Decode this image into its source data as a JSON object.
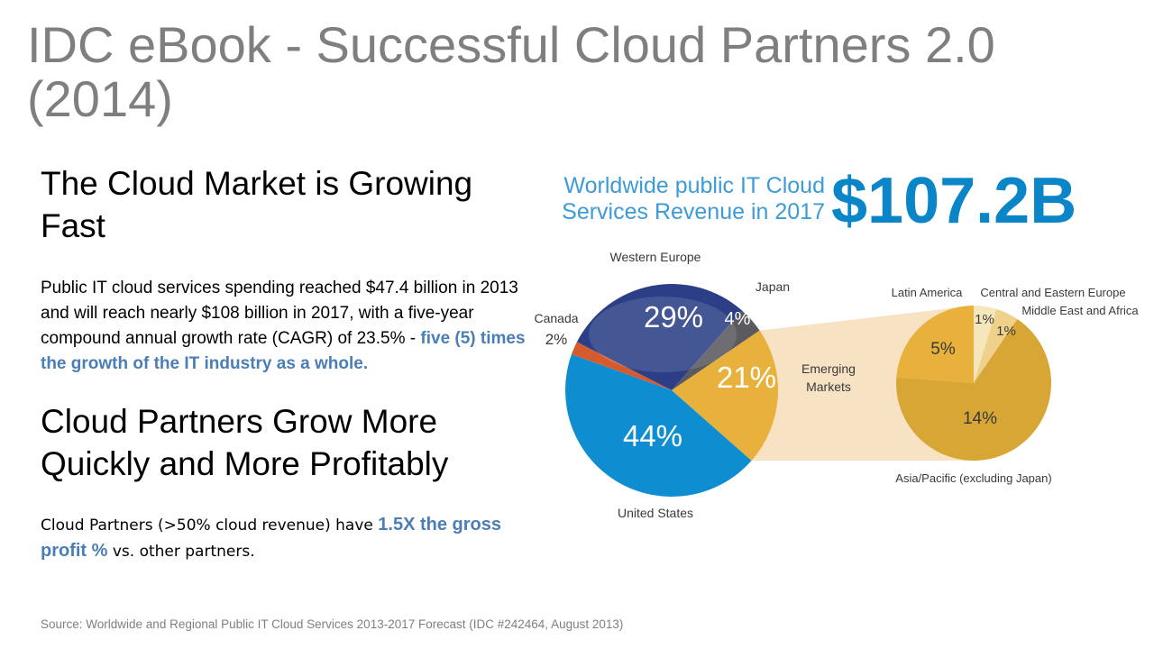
{
  "title": "IDC eBook - Successful Cloud Partners 2.0 (2014)",
  "section1": {
    "heading": "The Cloud Market is Growing Fast",
    "body_plain": "Public IT cloud services spending reached $47.4 billion in 2013 and will reach nearly $108 billion in 2017, with a five-year compound annual growth rate (CAGR) of 23.5% - ",
    "body_highlight": "five (5) times the growth of the IT industry as a whole."
  },
  "section2": {
    "heading": "Cloud Partners Grow More Quickly and More Profitably",
    "body_plain_1": "Cloud Partners (>50% cloud revenue) have ",
    "body_highlight": "1.5X the gross profit %",
    "body_plain_2": " vs. other partners."
  },
  "source": "Source:  Worldwide and Regional Public IT Cloud Services 2013-2017 Forecast (IDC #242464, August 2013)",
  "chart_data": {
    "type": "pie",
    "title": "Worldwide public IT Cloud Services Revenue in 2017",
    "total": "$107.2B",
    "main_pie": {
      "slices": [
        {
          "name": "Western Europe",
          "value": 29,
          "label": "29%",
          "color": "#2c3f86"
        },
        {
          "name": "Japan",
          "value": 4,
          "label": "4%",
          "color": "#5b5b5f"
        },
        {
          "name": "Emerging Markets",
          "value": 21,
          "label": "21%",
          "color": "#e8b13c"
        },
        {
          "name": "United States",
          "value": 44,
          "label": "44%",
          "color": "#0e8ed0"
        },
        {
          "name": "Canada",
          "value": 2,
          "label": "2%",
          "color": "#d35b2e"
        }
      ]
    },
    "emerging_pie": {
      "slices": [
        {
          "name": "Central and Eastern Europe",
          "value": 1,
          "label": "1%",
          "color": "#f6e6bb"
        },
        {
          "name": "Middle East and Africa",
          "value": 1,
          "label": "1%",
          "color": "#efd18b"
        },
        {
          "name": "Asia/Pacific (excluding Japan)",
          "value": 14,
          "label": "14%",
          "color": "#d8a635"
        },
        {
          "name": "Latin America",
          "value": 5,
          "label": "5%",
          "color": "#e8b13c"
        }
      ]
    },
    "labels": {
      "western_europe": "Western Europe",
      "japan": "Japan",
      "canada_name": "Canada",
      "canada_pct": "2%",
      "emerging_1": "Emerging",
      "emerging_2": "Markets",
      "united_states": "United States",
      "latin_america": "Latin America",
      "cee": "Central and Eastern Europe",
      "mea": "Middle East and Africa",
      "apac": "Asia/Pacific (excluding Japan)"
    },
    "colors": {
      "connector": "#f7e2c4",
      "subtitle": "#3d9bd6",
      "total": "#0a85c8"
    }
  }
}
